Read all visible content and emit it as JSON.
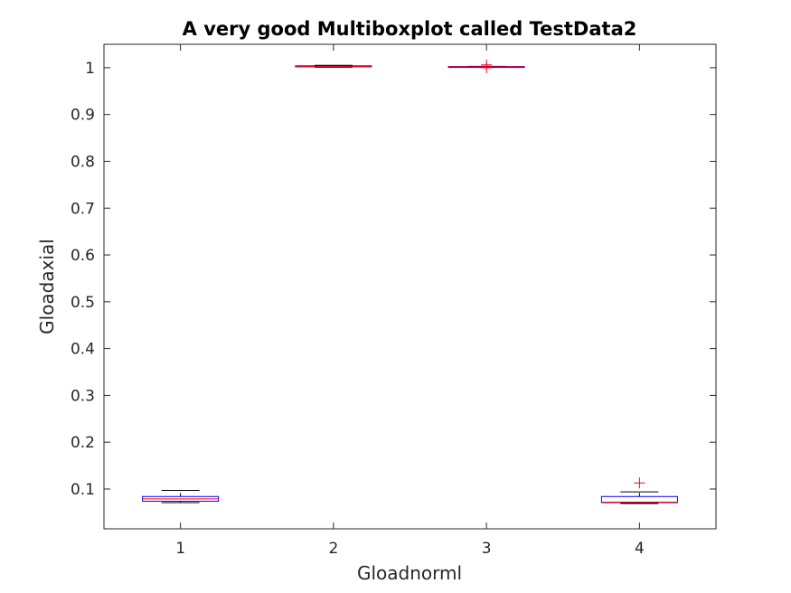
{
  "chart_data": {
    "type": "box",
    "title": "A very good Multiboxplot called TestData2",
    "xlabel": "Gloadnorml",
    "ylabel": "Gloadaxial",
    "categories": [
      "1",
      "2",
      "3",
      "4"
    ],
    "ylim": [
      0.015,
      1.05
    ],
    "yticks": [
      "0.1",
      "0.2",
      "0.3",
      "0.4",
      "0.5",
      "0.6",
      "0.7",
      "0.8",
      "0.9",
      "1"
    ],
    "ytick_values": [
      0.1,
      0.2,
      0.3,
      0.4,
      0.5,
      0.6,
      0.7,
      0.8,
      0.9,
      1.0
    ],
    "grid": false,
    "boxes": [
      {
        "category": "1",
        "whisker_low": 0.071,
        "q1": 0.074,
        "median": 0.079,
        "q3": 0.084,
        "whisker_high": 0.097,
        "outliers": []
      },
      {
        "category": "2",
        "whisker_low": 1.001,
        "q1": 1.002,
        "median": 1.003,
        "q3": 1.004,
        "whisker_high": 1.005,
        "outliers": []
      },
      {
        "category": "3",
        "whisker_low": 1.001,
        "q1": 1.0015,
        "median": 1.002,
        "q3": 1.0025,
        "whisker_high": 1.003,
        "outliers": [
          1.006,
          1.0
        ]
      },
      {
        "category": "4",
        "whisker_low": 0.069,
        "q1": 0.071,
        "median": 0.072,
        "q3": 0.084,
        "whisker_high": 0.094,
        "outliers": [
          0.113
        ]
      }
    ],
    "colors": {
      "box": "#0000ff",
      "median": "#ff0000",
      "whisker": "#000000",
      "outlier": "#ff0000",
      "axis": "#262626"
    }
  }
}
